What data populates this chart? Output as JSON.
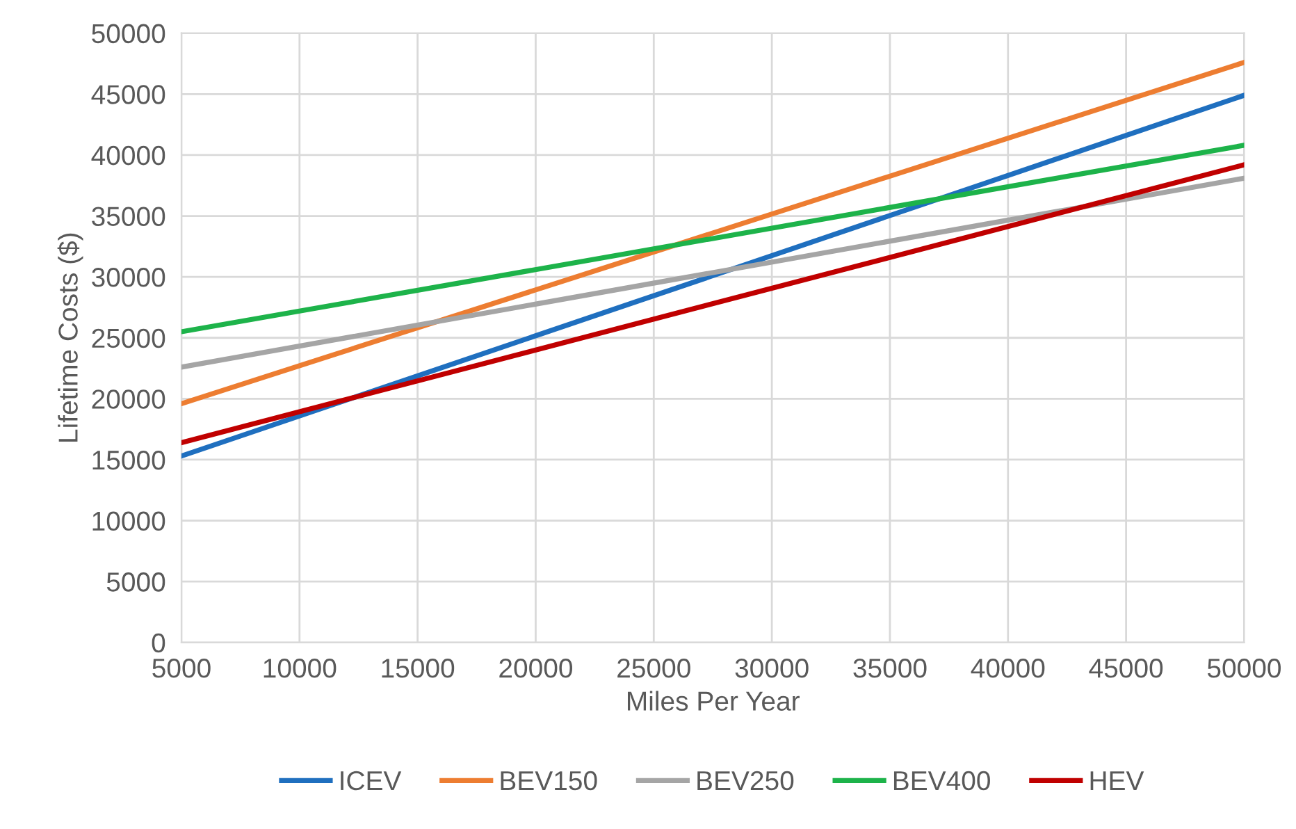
{
  "chart_data": {
    "type": "line",
    "xlabel": "Miles Per Year",
    "ylabel": "Lifetime Costs ($)",
    "x": [
      5000,
      50000
    ],
    "series": [
      {
        "name": "ICEV",
        "color": "#1f6fbf",
        "values": [
          15300,
          44900
        ]
      },
      {
        "name": "BEV150",
        "color": "#ed7d31",
        "values": [
          19600,
          47600
        ]
      },
      {
        "name": "BEV250",
        "color": "#a5a5a5",
        "values": [
          22600,
          38100
        ]
      },
      {
        "name": "BEV400",
        "color": "#1db34a",
        "values": [
          25500,
          40800
        ]
      },
      {
        "name": "HEV",
        "color": "#c00000",
        "values": [
          16400,
          39200
        ]
      }
    ],
    "xlim": [
      5000,
      50000
    ],
    "xticks": [
      5000,
      10000,
      15000,
      20000,
      25000,
      30000,
      35000,
      40000,
      45000,
      50000
    ],
    "ylim": [
      0,
      50000
    ],
    "yticks": [
      0,
      5000,
      10000,
      15000,
      20000,
      25000,
      30000,
      35000,
      40000,
      45000,
      50000
    ],
    "grid": true,
    "legend": "bottom",
    "marker": "none",
    "line_style": "solid"
  }
}
